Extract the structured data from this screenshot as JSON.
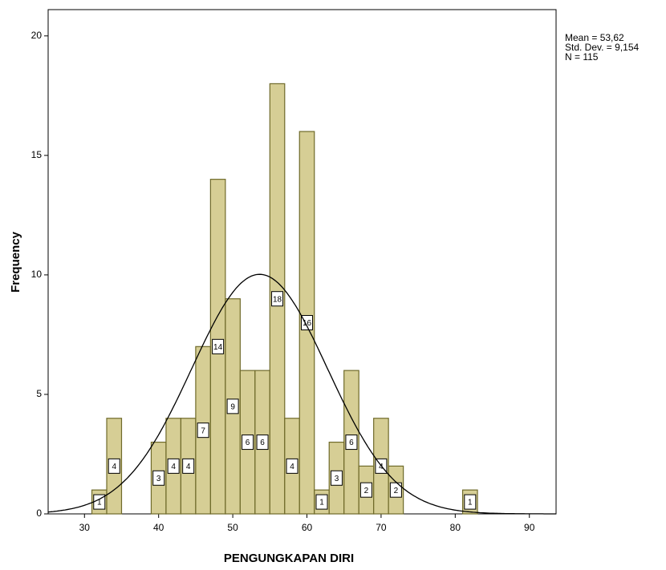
{
  "chart_data": {
    "type": "histogram",
    "x_label": "PENGUNGKAPAN DIRI",
    "y_label": "Frequency",
    "bins": [
      31,
      33,
      35,
      37,
      39,
      41,
      43,
      45,
      47,
      49,
      51,
      53,
      55,
      57,
      59,
      61,
      63,
      65,
      67,
      69,
      71,
      73,
      75,
      77,
      79,
      81,
      83
    ],
    "values": [
      1,
      4,
      0,
      0,
      3,
      4,
      4,
      7,
      14,
      9,
      6,
      6,
      18,
      4,
      16,
      1,
      3,
      6,
      2,
      4,
      2,
      0,
      0,
      0,
      0,
      1
    ],
    "color": "#cfc583",
    "edge_color": "#6f6a2a",
    "xlim": [
      25.1,
      93.6
    ],
    "ylim": [
      0,
      21.1
    ],
    "xticks": [
      30,
      40,
      50,
      60,
      70,
      80,
      90
    ],
    "yticks": [
      0,
      5,
      10,
      15,
      20
    ],
    "normal_curve": true,
    "stats": [
      {
        "label": "Mean = 53,62",
        "value": 53.62
      },
      {
        "label": "Std. Dev. = 9,154",
        "value": 9.154
      },
      {
        "label": "N = 115",
        "value": 115
      }
    ]
  }
}
